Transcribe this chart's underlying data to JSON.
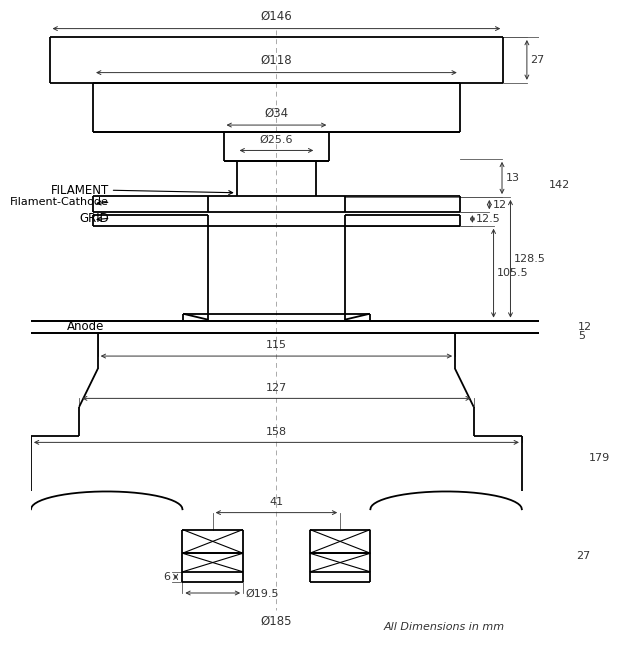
{
  "bg_color": "#ffffff",
  "line_color": "#000000",
  "dim_color": "#333333",
  "annotations": {
    "filament": "FILAMENT",
    "filament_cathode": "Filament-Cathode",
    "grid": "GRID",
    "anode": "Anode",
    "all_dims": "All Dimensions in mm"
  },
  "dims": {
    "d146": "Ø146",
    "d118": "Ø118",
    "d34": "Ø34",
    "d25_6": "Ø25.6",
    "d185": "Ø185",
    "d19_5": "Ø19.5",
    "v27t": "27",
    "v13": "13",
    "v12a": "12",
    "v12_5": "12.5",
    "v105_5": "105.5",
    "v128_5": "128.5",
    "v142": "142",
    "v12b": "12",
    "v5": "5",
    "v179": "179",
    "v27b": "27",
    "v6": "6",
    "h115": "115",
    "h127": "127",
    "h158": "158",
    "h41": "41"
  }
}
